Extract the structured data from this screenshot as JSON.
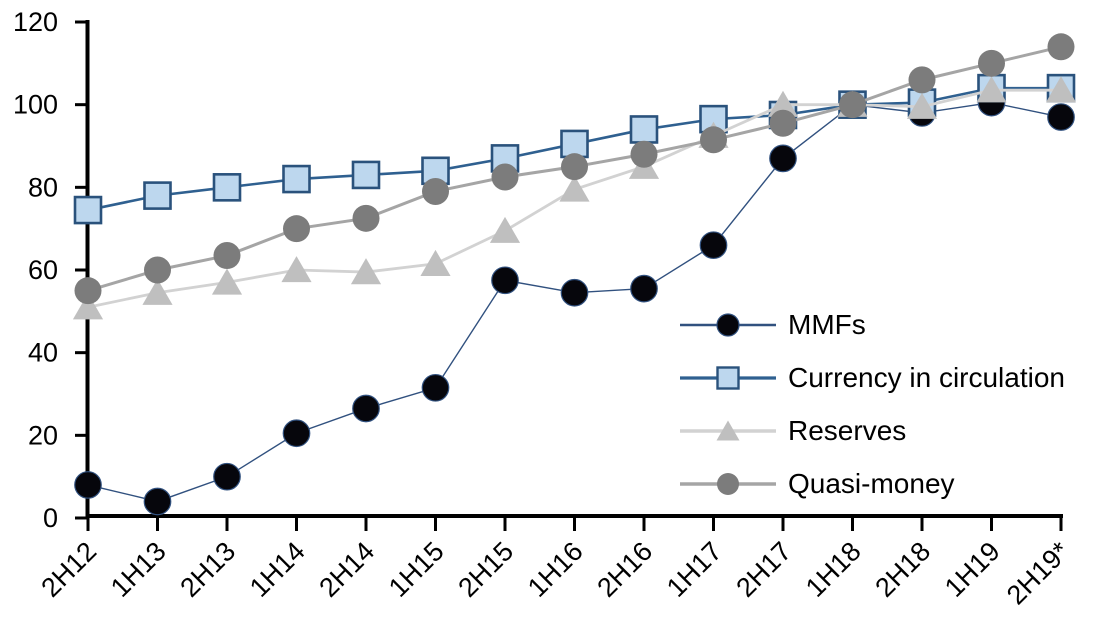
{
  "chart_data": {
    "type": "line",
    "title": "",
    "xlabel": "",
    "ylabel": "",
    "categories": [
      "2H12",
      "1H13",
      "2H13",
      "1H14",
      "2H14",
      "1H15",
      "2H15",
      "1H16",
      "2H16",
      "1H17",
      "2H17",
      "1H18",
      "2H18",
      "1H19",
      "2H19*"
    ],
    "series": [
      {
        "name": "MMFs",
        "marker": "circle",
        "line_color": "#31517F",
        "line_width": 1.4,
        "marker_fill": "#06060C",
        "marker_stroke": "#31517F",
        "marker_size": 26.5,
        "values": [
          8,
          4,
          10,
          20.5,
          26.5,
          31.5,
          57.5,
          54.5,
          55.5,
          66,
          87,
          100,
          98,
          100.5,
          97
        ]
      },
      {
        "name": "Currency in circulation",
        "marker": "square",
        "line_color": "#2F6090",
        "line_width": 2.6,
        "marker_fill": "#BDD7EE",
        "marker_stroke": "#2A527C",
        "marker_size": 26,
        "values": [
          74.5,
          78,
          80,
          82,
          83,
          84,
          87,
          90.5,
          94,
          96.5,
          97.5,
          100,
          100.5,
          104,
          104
        ]
      },
      {
        "name": "Reserves",
        "marker": "triangle",
        "line_color": "#D2D2D2",
        "line_width": 2.8,
        "marker_fill": "#BFBFBF",
        "marker_stroke": "none",
        "marker_size": 29,
        "values": [
          51,
          54.5,
          57,
          60,
          59.5,
          61.5,
          69.5,
          79.5,
          85,
          92.5,
          100,
          100,
          99.5,
          103.5,
          103.5
        ]
      },
      {
        "name": "Quasi-money",
        "marker": "circle",
        "line_color": "#A5A5A5",
        "line_width": 3,
        "marker_fill": "#7C7C7C",
        "marker_stroke": "none",
        "marker_size": 27,
        "values": [
          55,
          60,
          63.5,
          70,
          72.5,
          79,
          82.5,
          85,
          88,
          91.5,
          95.5,
          100,
          106,
          110,
          114
        ]
      }
    ],
    "ylim": [
      0,
      120
    ],
    "yticks": [
      0,
      20,
      40,
      60,
      80,
      100,
      120
    ],
    "xtick_rotation": -45,
    "grid": false,
    "legend_position": "inside-right-middle",
    "axis_color": "#000000"
  }
}
